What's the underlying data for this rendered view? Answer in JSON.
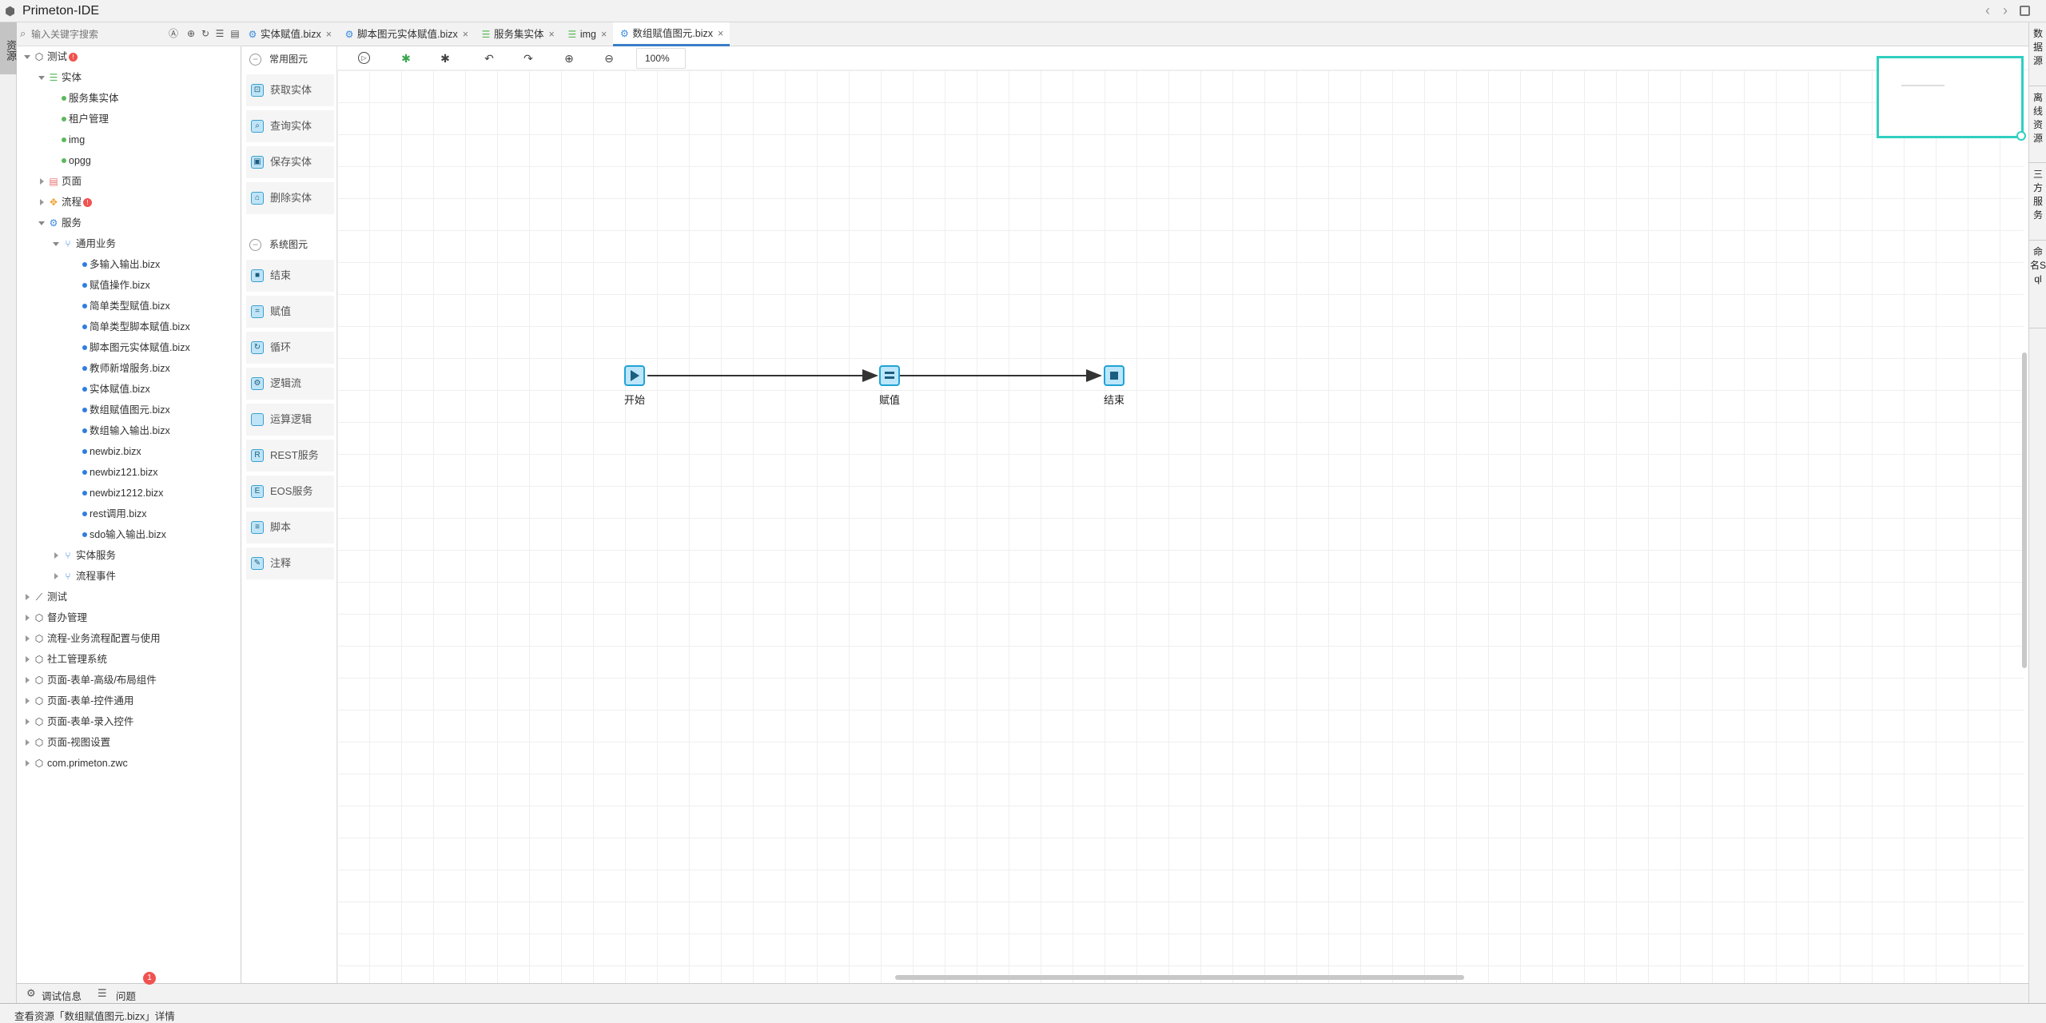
{
  "app": {
    "title": "Primeton-IDE",
    "nav_back": "‹",
    "nav_forward": "›"
  },
  "left_strip": {
    "tab": "资源"
  },
  "search": {
    "placeholder": "输入关键字搜索"
  },
  "tree": [
    {
      "label": "测试",
      "level": 0,
      "type": "package",
      "expanded": true,
      "badge": "!"
    },
    {
      "label": "实体",
      "level": 1,
      "type": "entity",
      "expanded": true
    },
    {
      "label": "服务集实体",
      "level": 2,
      "type": "leaf-green"
    },
    {
      "label": "租户管理",
      "level": 2,
      "type": "leaf-green"
    },
    {
      "label": "img",
      "level": 2,
      "type": "leaf-green"
    },
    {
      "label": "opgg",
      "level": 2,
      "type": "leaf-green"
    },
    {
      "label": "页面",
      "level": 1,
      "type": "page",
      "expanded": false
    },
    {
      "label": "流程",
      "level": 1,
      "type": "flow",
      "expanded": false,
      "badge": "!"
    },
    {
      "label": "服务",
      "level": 1,
      "type": "service",
      "expanded": true
    },
    {
      "label": "通用业务",
      "level": 2,
      "type": "biz",
      "expanded": true
    },
    {
      "label": "多输入输出.bizx",
      "level": 3,
      "type": "leaf-blue"
    },
    {
      "label": "赋值操作.bizx",
      "level": 3,
      "type": "leaf-blue"
    },
    {
      "label": "简单类型赋值.bizx",
      "level": 3,
      "type": "leaf-blue"
    },
    {
      "label": "简单类型脚本赋值.bizx",
      "level": 3,
      "type": "leaf-blue"
    },
    {
      "label": "脚本图元实体赋值.bizx",
      "level": 3,
      "type": "leaf-blue"
    },
    {
      "label": "教师新增服务.bizx",
      "level": 3,
      "type": "leaf-blue"
    },
    {
      "label": "实体赋值.bizx",
      "level": 3,
      "type": "leaf-blue"
    },
    {
      "label": "数组赋值图元.bizx",
      "level": 3,
      "type": "leaf-blue"
    },
    {
      "label": "数组输入输出.bizx",
      "level": 3,
      "type": "leaf-blue"
    },
    {
      "label": "newbiz.bizx",
      "level": 3,
      "type": "leaf-blue"
    },
    {
      "label": "newbiz121.bizx",
      "level": 3,
      "type": "leaf-blue"
    },
    {
      "label": "newbiz1212.bizx",
      "level": 3,
      "type": "leaf-blue"
    },
    {
      "label": "rest调用.bizx",
      "level": 3,
      "type": "leaf-blue"
    },
    {
      "label": "sdo输入输出.bizx",
      "level": 3,
      "type": "leaf-blue"
    },
    {
      "label": "实体服务",
      "level": 2,
      "type": "biz",
      "expanded": false
    },
    {
      "label": "流程事件",
      "level": 2,
      "type": "biz",
      "expanded": false
    },
    {
      "label": "测试",
      "level": 0,
      "type": "test",
      "expanded": false
    },
    {
      "label": "督办管理",
      "level": 0,
      "type": "package",
      "expanded": false
    },
    {
      "label": "流程-业务流程配置与使用",
      "level": 0,
      "type": "package",
      "expanded": false
    },
    {
      "label": "社工管理系统",
      "level": 0,
      "type": "package",
      "expanded": false
    },
    {
      "label": "页面-表单-高级/布局组件",
      "level": 0,
      "type": "package",
      "expanded": false
    },
    {
      "label": "页面-表单-控件通用",
      "level": 0,
      "type": "package",
      "expanded": false
    },
    {
      "label": "页面-表单-录入控件",
      "level": 0,
      "type": "package",
      "expanded": false
    },
    {
      "label": "页面-视图设置",
      "level": 0,
      "type": "package",
      "expanded": false
    },
    {
      "label": "com.primeton.zwc",
      "level": 0,
      "type": "package",
      "expanded": false
    }
  ],
  "tabs": [
    {
      "label": "实体赋值.bizx",
      "icon": "gear",
      "active": false
    },
    {
      "label": "脚本图元实体赋值.bizx",
      "icon": "gear",
      "active": false
    },
    {
      "label": "服务集实体",
      "icon": "database",
      "active": false
    },
    {
      "label": "img",
      "icon": "database",
      "active": false
    },
    {
      "label": "数组赋值图元.bizx",
      "icon": "gear",
      "active": true
    }
  ],
  "palette": {
    "common_header": "常用图元",
    "common": [
      {
        "label": "获取实体",
        "icon": "⊡"
      },
      {
        "label": "查询实体",
        "icon": "⌕"
      },
      {
        "label": "保存实体",
        "icon": "▣"
      },
      {
        "label": "删除实体",
        "icon": "⌂"
      }
    ],
    "system_header": "系统图元",
    "system": [
      {
        "label": "结束",
        "icon": "■"
      },
      {
        "label": "赋值",
        "icon": "="
      },
      {
        "label": "循环",
        "icon": "↻"
      },
      {
        "label": "逻辑流",
        "icon": "⚙"
      },
      {
        "label": "运算逻辑",
        "icon": ""
      },
      {
        "label": "REST服务",
        "icon": "R"
      },
      {
        "label": "EOS服务",
        "icon": "E"
      },
      {
        "label": "脚本",
        "icon": "≡"
      },
      {
        "label": "注释",
        "icon": "✎"
      }
    ]
  },
  "toolbar": {
    "zoom": "100%"
  },
  "diagram": {
    "nodes": [
      {
        "label": "开始",
        "type": "start"
      },
      {
        "label": "赋值",
        "type": "assign"
      },
      {
        "label": "结束",
        "type": "end"
      }
    ],
    "edges": [
      [
        "开始",
        "赋值"
      ],
      [
        "赋值",
        "结束"
      ]
    ]
  },
  "right_tabs": [
    "数据源",
    "离线资源",
    "三方服务",
    "命名Sql"
  ],
  "bottom": {
    "debug": "调试信息",
    "problems": "问题",
    "problems_count": "1"
  },
  "status": {
    "text": "查看资源「数组赋值图元.bizx」详情"
  },
  "colors": {
    "accent": "#3b7ec8",
    "minimap": "#2fcfc0",
    "node_border": "#1fa3d6",
    "node_fill": "#bde6fa",
    "badge": "#ef5350"
  }
}
